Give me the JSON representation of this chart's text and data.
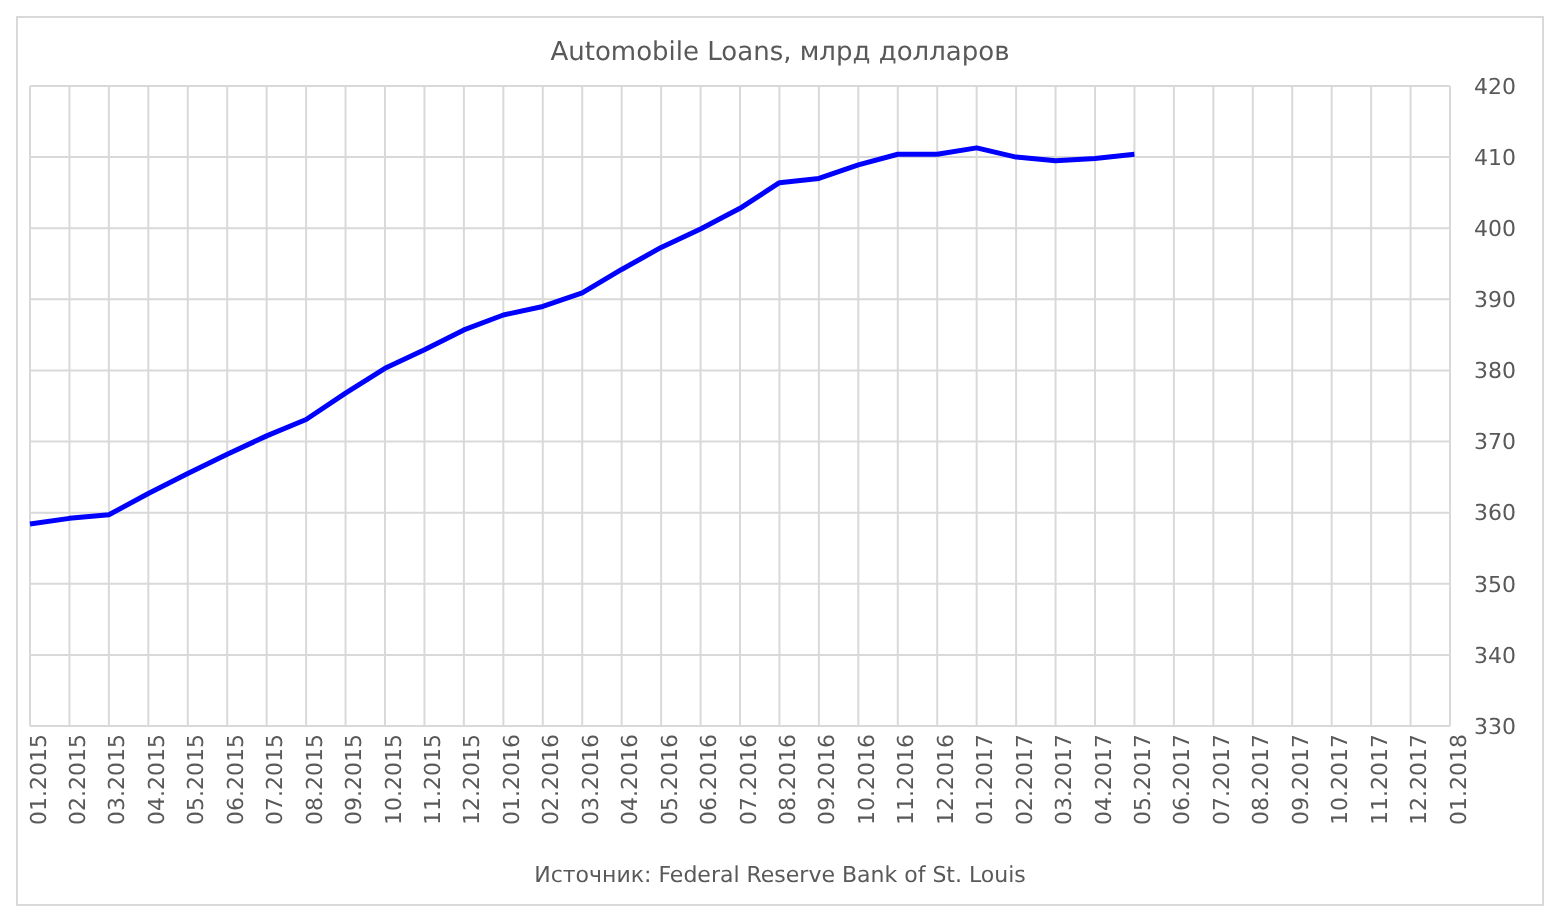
{
  "chart_data": {
    "type": "line",
    "title": "Automobile Loans, млрд долларов",
    "categories": [
      "01.2015",
      "02.2015",
      "03.2015",
      "04.2015",
      "05.2015",
      "06.2015",
      "07.2015",
      "08.2015",
      "09.2015",
      "10.2015",
      "11.2015",
      "12.2015",
      "01.2016",
      "02.2016",
      "03.2016",
      "04.2016",
      "05.2016",
      "06.2016",
      "07.2016",
      "08.2016",
      "09.2016",
      "10.2016",
      "11.2016",
      "12.2016",
      "01.2017",
      "02.2017",
      "03.2017",
      "04.2017",
      "05.2017",
      "06.2017",
      "07.2017",
      "08.2017",
      "09.2017",
      "10.2017",
      "11.2017",
      "12.2017",
      "01.2018"
    ],
    "series": [
      {
        "color": "#0000ff",
        "values": [
          358.4,
          359.2,
          359.7,
          362.7,
          365.5,
          368.2,
          370.8,
          373.1,
          376.8,
          380.3,
          382.9,
          385.7,
          387.8,
          389.0,
          390.9,
          394.2,
          397.3,
          399.9,
          402.8,
          406.4,
          407.0,
          408.9,
          410.4,
          410.4,
          411.3,
          410.0,
          409.5,
          409.8,
          410.4,
          null,
          null,
          null,
          null,
          null,
          null,
          null,
          null
        ]
      }
    ],
    "ylim": [
      330,
      420
    ],
    "yticks": [
      330,
      340,
      350,
      360,
      370,
      380,
      390,
      400,
      410,
      420
    ],
    "grid": true,
    "marker": "none",
    "line_style": "solid",
    "annotations": [
      "Источник: Federal Reserve Bank of St. Louis"
    ]
  }
}
